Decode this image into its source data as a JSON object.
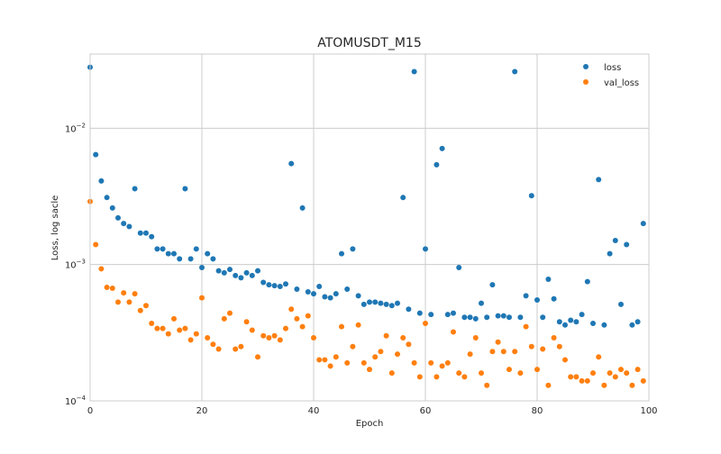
{
  "chart_data": {
    "type": "scatter",
    "title": "ATOMUSDT_M15",
    "xlabel": "Epoch",
    "ylabel": "Loss, log sacle",
    "y_scale": "log",
    "xlim": [
      0,
      100
    ],
    "ylim": [
      0.0001,
      0.035
    ],
    "x_ticks": [
      0,
      20,
      40,
      60,
      80,
      100
    ],
    "y_ticks": [
      {
        "value": 0.0001,
        "base": "10",
        "exp": "−4"
      },
      {
        "value": 0.001,
        "base": "10",
        "exp": "−3"
      },
      {
        "value": 0.01,
        "base": "10",
        "exp": "−2"
      }
    ],
    "grid": true,
    "legend_placement": "top-right",
    "series": [
      {
        "name": "loss",
        "color": "#1f77b4",
        "x": [
          0,
          1,
          2,
          3,
          4,
          5,
          6,
          7,
          8,
          9,
          10,
          11,
          12,
          13,
          14,
          15,
          16,
          17,
          18,
          19,
          20,
          21,
          22,
          23,
          24,
          25,
          26,
          27,
          28,
          29,
          30,
          31,
          32,
          33,
          34,
          35,
          36,
          37,
          38,
          39,
          40,
          41,
          42,
          43,
          44,
          45,
          46,
          47,
          48,
          49,
          50,
          51,
          52,
          53,
          54,
          55,
          56,
          57,
          58,
          59,
          60,
          61,
          62,
          63,
          64,
          65,
          66,
          67,
          68,
          69,
          70,
          71,
          72,
          73,
          74,
          75,
          76,
          77,
          78,
          79,
          80,
          81,
          82,
          83,
          84,
          85,
          86,
          87,
          88,
          89,
          90,
          91,
          92,
          93,
          94,
          95,
          96,
          97,
          98,
          99
        ],
        "y": [
          0.028,
          0.0064,
          0.0041,
          0.0031,
          0.0026,
          0.0022,
          0.002,
          0.0019,
          0.0036,
          0.0017,
          0.0017,
          0.0016,
          0.0013,
          0.0013,
          0.0012,
          0.0012,
          0.0011,
          0.0036,
          0.0011,
          0.0013,
          0.00095,
          0.0012,
          0.0011,
          0.0009,
          0.00087,
          0.00092,
          0.00083,
          0.0008,
          0.00087,
          0.00083,
          0.0009,
          0.00074,
          0.00071,
          0.0007,
          0.00069,
          0.00072,
          0.0055,
          0.00066,
          0.0026,
          0.00063,
          0.00061,
          0.00069,
          0.00058,
          0.00057,
          0.00061,
          0.0012,
          0.00066,
          0.0013,
          0.00059,
          0.00051,
          0.00053,
          0.00053,
          0.00052,
          0.00051,
          0.0005,
          0.00052,
          0.0031,
          0.00047,
          0.026,
          0.00044,
          0.0013,
          0.00043,
          0.0054,
          0.0071,
          0.00043,
          0.00044,
          0.00095,
          0.00041,
          0.00041,
          0.0004,
          0.00052,
          0.00041,
          0.00071,
          0.00042,
          0.00042,
          0.00041,
          0.026,
          0.00041,
          0.00059,
          0.0032,
          0.00055,
          0.00041,
          0.00078,
          0.00056,
          0.00038,
          0.00036,
          0.00039,
          0.00038,
          0.00043,
          0.00075,
          0.00037,
          0.0042,
          0.00036,
          0.0012,
          0.0015,
          0.00051,
          0.0014,
          0.00036,
          0.00038,
          0.002
        ]
      },
      {
        "name": "val_loss",
        "color": "#ff7f0e",
        "x": [
          0,
          1,
          2,
          3,
          4,
          5,
          6,
          7,
          8,
          9,
          10,
          11,
          12,
          13,
          14,
          15,
          16,
          17,
          18,
          19,
          20,
          21,
          22,
          23,
          24,
          25,
          26,
          27,
          28,
          29,
          30,
          31,
          32,
          33,
          34,
          35,
          36,
          37,
          38,
          39,
          40,
          41,
          42,
          43,
          44,
          45,
          46,
          47,
          48,
          49,
          50,
          51,
          52,
          53,
          54,
          55,
          56,
          57,
          58,
          59,
          60,
          61,
          62,
          63,
          64,
          65,
          66,
          67,
          68,
          69,
          70,
          71,
          72,
          73,
          74,
          75,
          76,
          77,
          78,
          79,
          80,
          81,
          82,
          83,
          84,
          85,
          86,
          87,
          88,
          89,
          90,
          91,
          92,
          93,
          94,
          95,
          96,
          97,
          98,
          99
        ],
        "y": [
          0.0029,
          0.0014,
          0.00093,
          0.00068,
          0.00067,
          0.00053,
          0.00062,
          0.00053,
          0.00061,
          0.00046,
          0.0005,
          0.00037,
          0.00034,
          0.00034,
          0.00031,
          0.0004,
          0.00033,
          0.00034,
          0.00028,
          0.00031,
          0.00057,
          0.00029,
          0.00026,
          0.00024,
          0.0004,
          0.00044,
          0.00024,
          0.00025,
          0.00038,
          0.00033,
          0.00021,
          0.0003,
          0.00029,
          0.0003,
          0.00028,
          0.00034,
          0.00047,
          0.0004,
          0.00035,
          0.00042,
          0.00029,
          0.0002,
          0.0002,
          0.00018,
          0.00021,
          0.00035,
          0.00019,
          0.00025,
          0.00036,
          0.00019,
          0.00017,
          0.00021,
          0.00023,
          0.0003,
          0.00016,
          0.00022,
          0.00029,
          0.00026,
          0.00019,
          0.00015,
          0.00037,
          0.00019,
          0.00015,
          0.00018,
          0.00019,
          0.00032,
          0.00016,
          0.00015,
          0.00022,
          0.00029,
          0.00016,
          0.00013,
          0.00023,
          0.00027,
          0.00023,
          0.00017,
          0.00023,
          0.00016,
          0.00035,
          0.00025,
          0.00017,
          0.00024,
          0.00013,
          0.00029,
          0.00025,
          0.0002,
          0.00015,
          0.00015,
          0.00014,
          0.00014,
          0.00016,
          0.00021,
          0.00013,
          0.00016,
          0.00015,
          0.00017,
          0.00016,
          0.00013,
          0.00017,
          0.00014
        ]
      }
    ]
  }
}
